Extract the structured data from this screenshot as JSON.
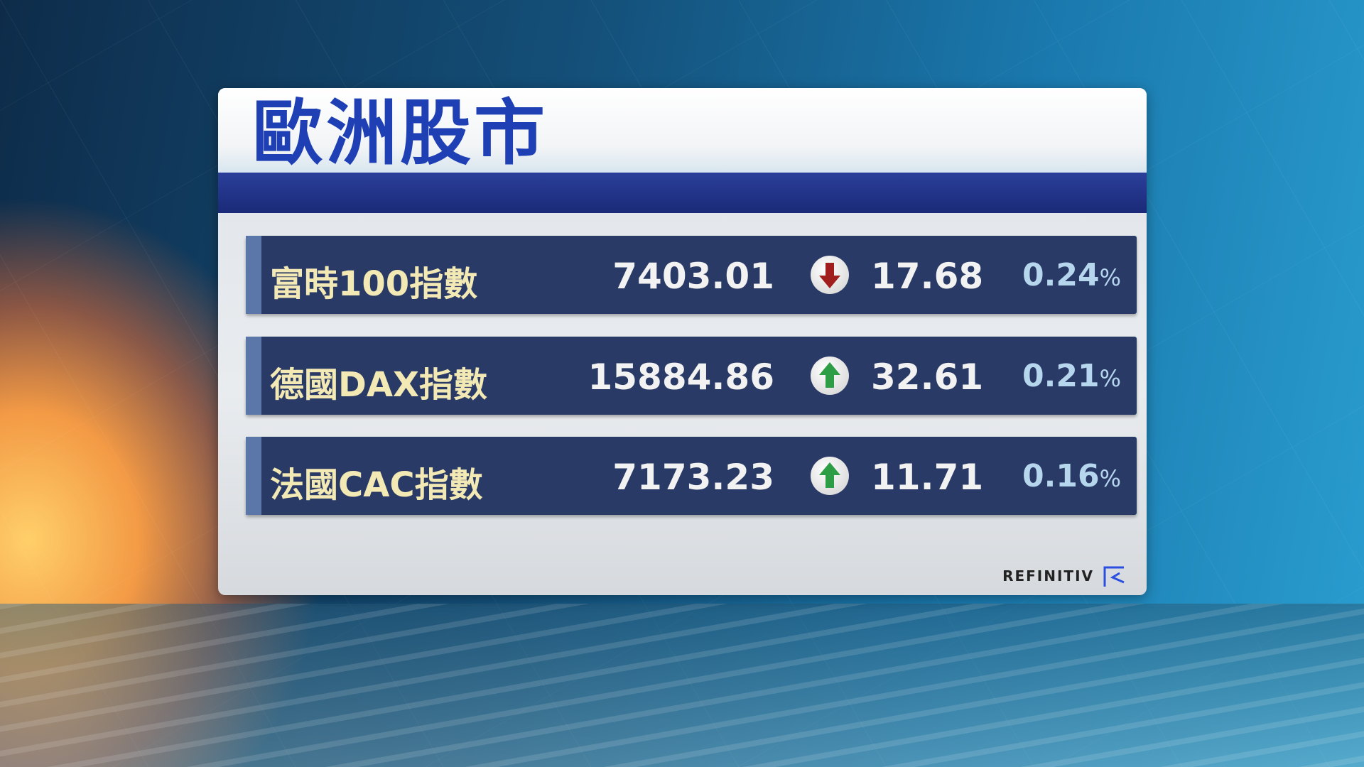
{
  "title": "歐洲股市",
  "rows": [
    {
      "name": "富時100指數",
      "value": "7403.01",
      "direction": "down",
      "change": "17.68",
      "pct": "0.24",
      "pct_unit": "%"
    },
    {
      "name": "德國DAX指數",
      "value": "15884.86",
      "direction": "up",
      "change": "32.61",
      "pct": "0.21",
      "pct_unit": "%"
    },
    {
      "name": "法國CAC指數",
      "value": "7173.23",
      "direction": "up",
      "change": "11.71",
      "pct": "0.16",
      "pct_unit": "%"
    }
  ],
  "colors": {
    "up": "#2e9e46",
    "down": "#a01e1e",
    "title": "#1f3fb5"
  },
  "source_logo": "REFINITIV"
}
